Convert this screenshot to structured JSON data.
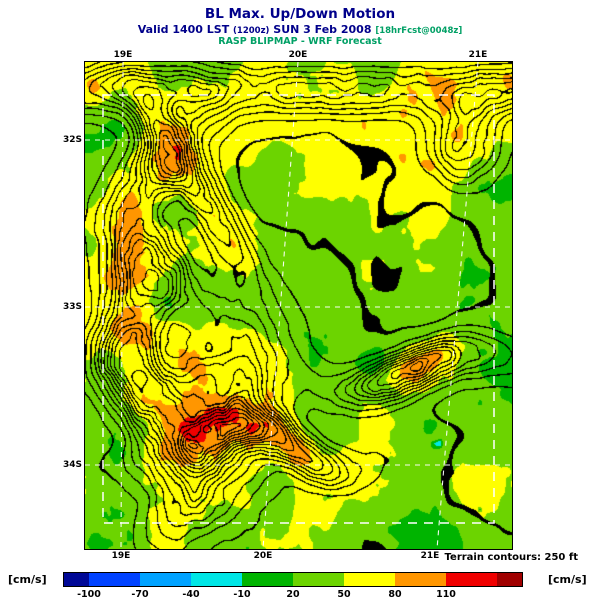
{
  "colors": {
    "title_navy": "#00008b",
    "accent_teal": "#00a065",
    "page_bg": "#ffffff"
  },
  "header": {
    "title": "BL Max. Up/Down Motion",
    "valid_prefix": "Valid 1400 LST",
    "valid_zulu": "(1200z)",
    "valid_date": "SUN 3 Feb 2008",
    "valid_fcst": "[18hrFcst@0048z]",
    "model_line": "RASP BLIPMAP - WRF Forecast"
  },
  "axes": {
    "top": [
      "19E",
      "20E",
      "21E"
    ],
    "bottom": [
      "19E",
      "20E",
      "21E"
    ],
    "left": [
      "32S",
      "33S",
      "34S"
    ],
    "right": [
      "32S",
      "33S",
      "34S"
    ]
  },
  "map": {
    "terrain_note": "Terrain contours: 250 ft"
  },
  "colorbar": {
    "unit_left": "[cm/s]",
    "unit_right": "[cm/s]",
    "tick_labels": [
      "-100",
      "-70",
      "-40",
      "-10",
      "20",
      "50",
      "80",
      "110"
    ],
    "segment_colors": [
      "#000896",
      "#0042ff",
      "#00a2ff",
      "#00e6e6",
      "#00b400",
      "#6cd400",
      "#ffff00",
      "#ff9600",
      "#f00000",
      "#a00000"
    ],
    "boundary_values": [
      -100,
      -70,
      -40,
      -10,
      20,
      50,
      80,
      110,
      140
    ]
  },
  "map_render": {
    "contour_levels": 18,
    "contour_color": "#000000"
  },
  "chart_data": {
    "type": "heatmap",
    "title": "BL Max. Up/Down Motion",
    "units": "cm/s",
    "x_tick_labels": [
      "19E",
      "20E",
      "21E"
    ],
    "y_tick_labels": [
      "32S",
      "33S",
      "34S"
    ],
    "colorbar_tick_values": [
      -100,
      -70,
      -40,
      -10,
      20,
      50,
      80,
      110
    ],
    "colorbar_colors": [
      "#000896",
      "#0042ff",
      "#00a2ff",
      "#00e6e6",
      "#00b400",
      "#6cd400",
      "#ffff00",
      "#ff9600",
      "#f00000",
      "#a00000"
    ],
    "terrain_contour_interval": "250 ft"
  }
}
